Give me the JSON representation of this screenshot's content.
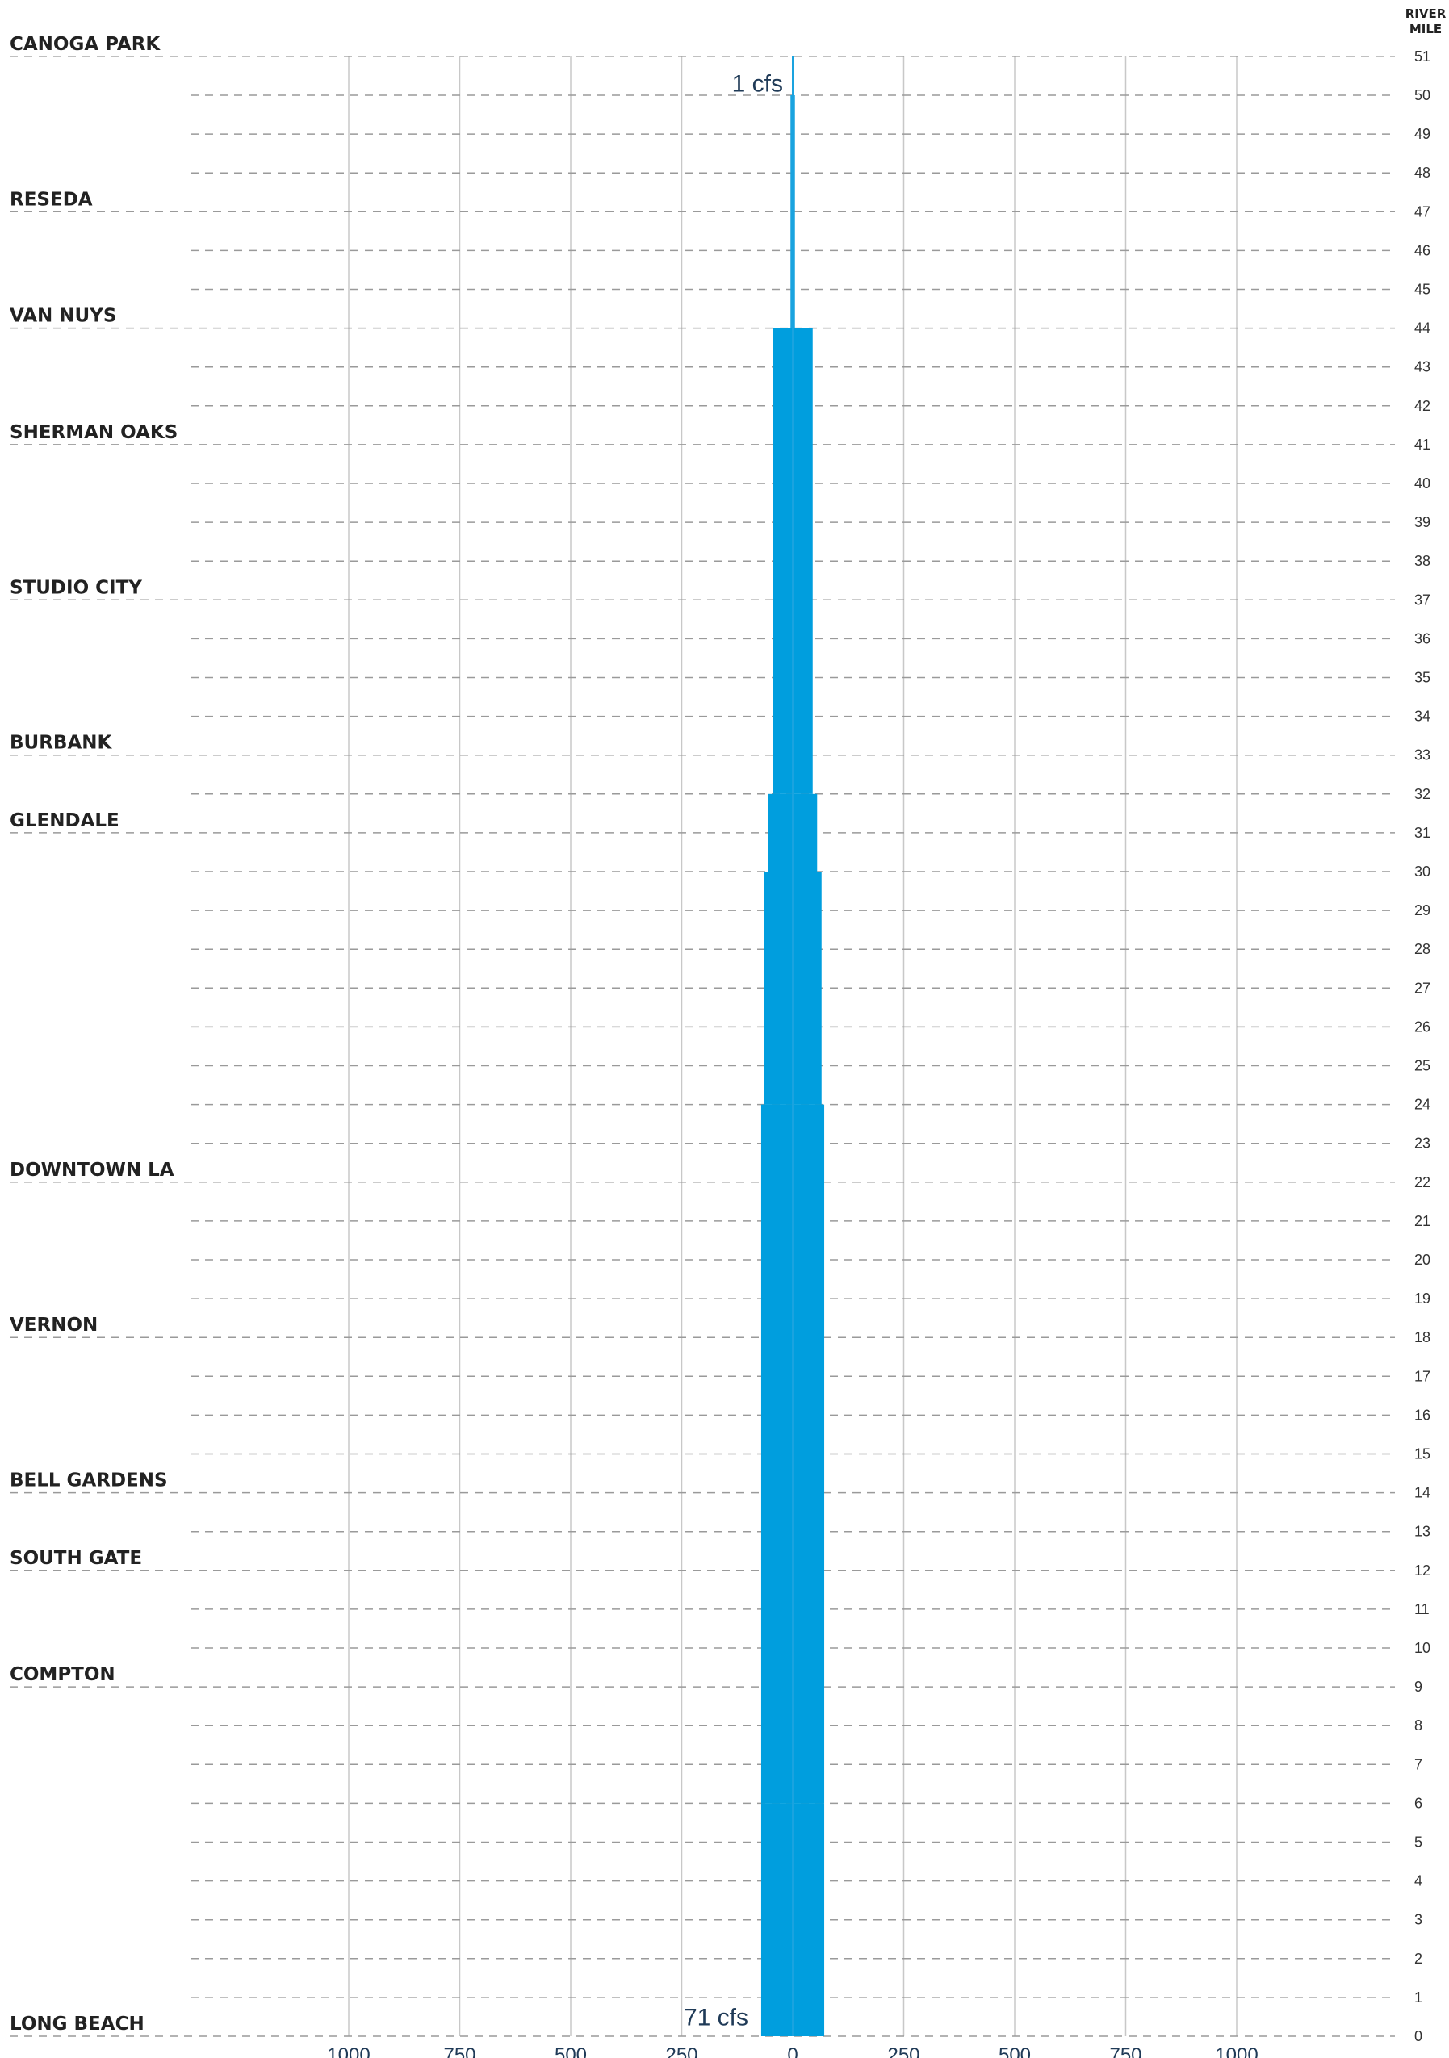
{
  "chart_data": {
    "type": "bar",
    "orientation": "horizontal-mirrored",
    "river_mile_header": [
      "RIVER",
      "MILE"
    ],
    "y_axis": {
      "ticks": [
        51,
        50,
        49,
        48,
        47,
        46,
        45,
        44,
        43,
        42,
        41,
        40,
        39,
        38,
        37,
        36,
        35,
        34,
        33,
        32,
        31,
        30,
        29,
        28,
        27,
        26,
        25,
        24,
        23,
        22,
        21,
        20,
        19,
        18,
        17,
        16,
        15,
        14,
        13,
        12,
        11,
        10,
        9,
        8,
        7,
        6,
        5,
        4,
        3,
        2,
        1,
        0
      ],
      "range": [
        0,
        51
      ]
    },
    "x_axis": {
      "ticks": [
        "1000",
        "750",
        "500",
        "250",
        "0",
        "250",
        "500",
        "750",
        "1000"
      ],
      "tick_values": [
        -1000,
        -750,
        -500,
        -250,
        0,
        250,
        500,
        750,
        1000
      ],
      "range": [
        -1000,
        1000
      ]
    },
    "grid": true,
    "cities": [
      {
        "name": "CANOGA PARK",
        "mile": 51
      },
      {
        "name": "RESEDA",
        "mile": 47
      },
      {
        "name": "VAN NUYS",
        "mile": 44
      },
      {
        "name": "SHERMAN OAKS",
        "mile": 41
      },
      {
        "name": "STUDIO CITY",
        "mile": 37
      },
      {
        "name": "BURBANK",
        "mile": 33
      },
      {
        "name": "GLENDALE",
        "mile": 31
      },
      {
        "name": "DOWNTOWN LA",
        "mile": 22
      },
      {
        "name": "VERNON",
        "mile": 18
      },
      {
        "name": "BELL GARDENS",
        "mile": 14
      },
      {
        "name": "SOUTH GATE",
        "mile": 12
      },
      {
        "name": "COMPTON",
        "mile": 9
      },
      {
        "name": "LONG BEACH",
        "mile": 0
      }
    ],
    "series": [
      {
        "unit": "cfs",
        "segments": [
          {
            "mile_top": 51,
            "mile_bottom": 50,
            "flow": 1
          },
          {
            "mile_top": 50,
            "mile_bottom": 44,
            "flow": 5
          },
          {
            "mile_top": 44,
            "mile_bottom": 32,
            "flow": 45
          },
          {
            "mile_top": 32,
            "mile_bottom": 30,
            "flow": 55
          },
          {
            "mile_top": 30,
            "mile_bottom": 24,
            "flow": 65
          },
          {
            "mile_top": 24,
            "mile_bottom": 6,
            "flow": 71
          },
          {
            "mile_top": 6,
            "mile_bottom": 0,
            "flow": 71
          }
        ]
      }
    ],
    "labels": {
      "top_flow": "1 cfs",
      "bottom_flow": "71 cfs"
    },
    "colors": {
      "bar": "#009ede",
      "line": "#1aa3df",
      "grid": "#c8c8c8",
      "dash": "#9a9a9a"
    }
  }
}
